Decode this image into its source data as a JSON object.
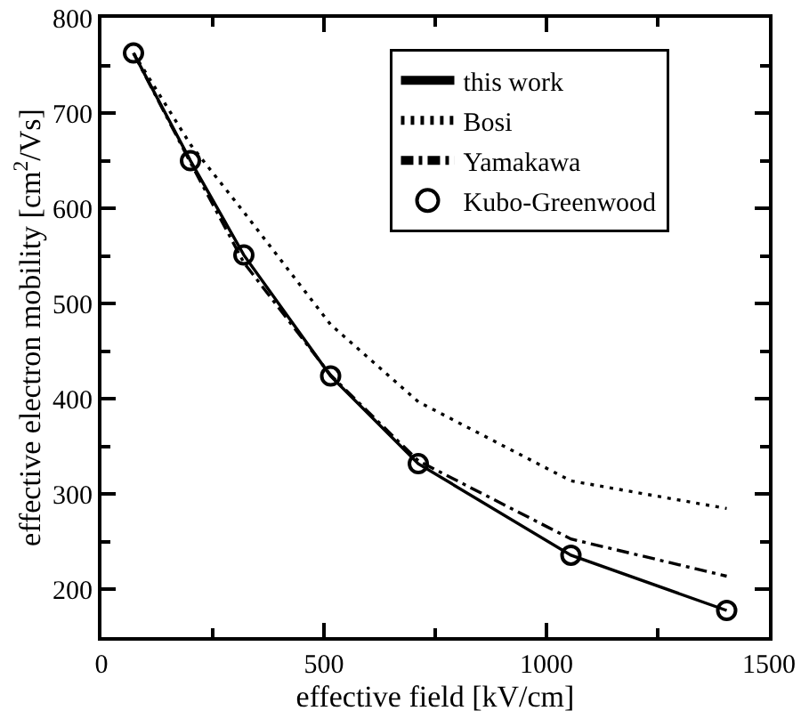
{
  "chart_data": {
    "type": "line",
    "xlabel": "effective field [kV/cm]",
    "ylabel": "effective electron mobility [cm$^{2}$/Vs]",
    "x": [
      72,
      200,
      320,
      515,
      712,
      1055,
      1405
    ],
    "series": [
      {
        "name": "this work",
        "color": "#000000",
        "line_style": "solid",
        "marker": "none",
        "values": [
          763,
          650,
          551,
          424,
          332,
          236,
          178
        ]
      },
      {
        "name": "Bosi",
        "color": "#000000",
        "line_style": "dotted",
        "marker": "none",
        "values": [
          763,
          667,
          596,
          478,
          397,
          314,
          285
        ]
      },
      {
        "name": "Yamakawa",
        "color": "#000000",
        "line_style": "dashdot",
        "marker": "none",
        "values": [
          763,
          648,
          543,
          425,
          335,
          253,
          214
        ]
      },
      {
        "name": "Kubo-Greenwood",
        "type": "scatter",
        "color": "#000000",
        "marker": "circle",
        "values": [
          763,
          650,
          551,
          424,
          332,
          236,
          178
        ]
      }
    ],
    "xlim": [
      0,
      1500
    ],
    "xticks": [
      0,
      {
        "value": 250,
        "label": null
      },
      500,
      {
        "value": 750,
        "label": null
      },
      1000,
      {
        "value": 1250,
        "label": null
      },
      1500
    ],
    "ylim": [
      150,
      800
    ],
    "yticks": [
      200,
      {
        "value": 250,
        "label": null
      },
      300,
      {
        "value": 350,
        "label": null
      },
      400,
      {
        "value": 450,
        "label": null
      },
      500,
      {
        "value": 550,
        "label": null
      },
      600,
      {
        "value": 650,
        "label": null
      },
      700,
      {
        "value": 750,
        "label": null
      },
      800
    ],
    "legend": "top right",
    "grid": false
  }
}
